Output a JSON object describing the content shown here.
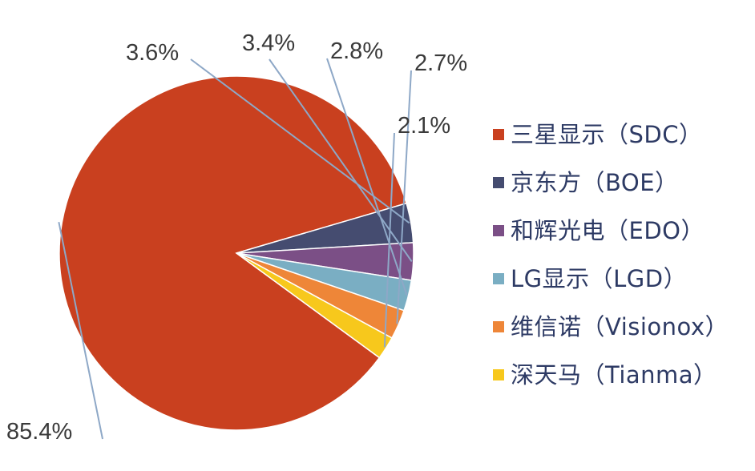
{
  "chart_data": {
    "type": "pie",
    "title": "",
    "series": [
      {
        "name": "三星显示（SDC）",
        "value": 85.4,
        "label": "85.4%",
        "color": "#c9401f"
      },
      {
        "name": "京东方（BOE）",
        "value": 3.6,
        "label": "3.6%",
        "color": "#454c70"
      },
      {
        "name": "和辉光电（EDO）",
        "value": 3.4,
        "label": "3.4%",
        "color": "#7b4f86"
      },
      {
        "name": "LG显示（LGD）",
        "value": 2.8,
        "label": "2.8%",
        "color": "#7aaec3"
      },
      {
        "name": "维信诺（Visionox）",
        "value": 2.7,
        "label": "2.7%",
        "color": "#ee8638"
      },
      {
        "name": "深天马（Tianma）",
        "value": 2.1,
        "label": "2.1%",
        "color": "#f7c81c"
      }
    ],
    "legend_position": "right",
    "leader_line_color": "#8ea8c7"
  }
}
